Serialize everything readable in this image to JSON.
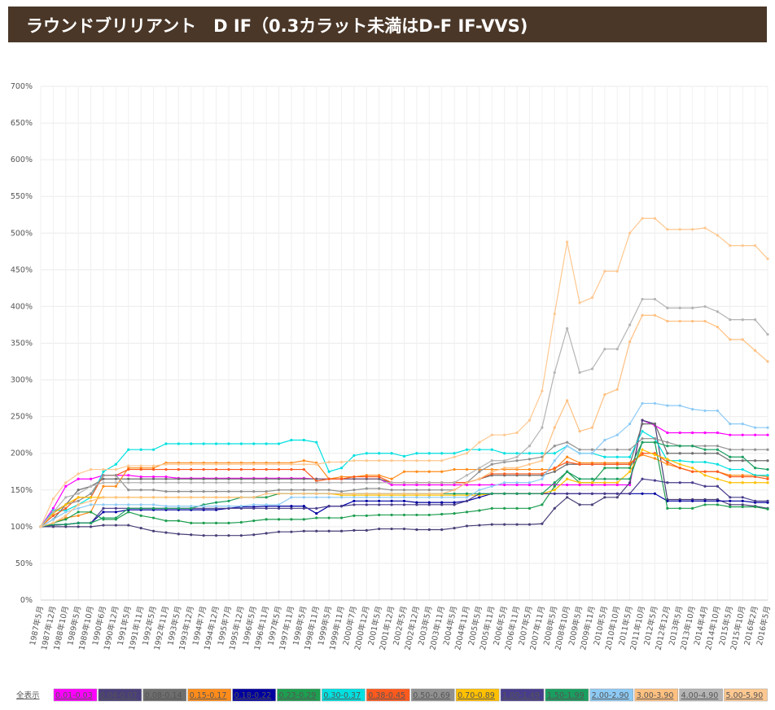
{
  "chart_data": {
    "type": "line",
    "title": "ラウンドブリリアント　D IF（0.3カラット未満はD-F IF-VVS)",
    "legend_all": "全表示",
    "grid": true,
    "categories": [
      "1987年5月",
      "1987年12月",
      "1988年10月",
      "1989年5月",
      "1989年10月",
      "1990年6月",
      "1990年12月",
      "1991年5月",
      "1991年11月",
      "1992年5月",
      "1992年11月",
      "1993年5月",
      "1993年12月",
      "1994年7月",
      "1994年12月",
      "1995年7月",
      "1995年12月",
      "1996年5月",
      "1996年11月",
      "1997年5月",
      "1997年11月",
      "1998年5月",
      "1998年11月",
      "1999年5月",
      "1999年11月",
      "2000年7月",
      "2000年12月",
      "2001年5月",
      "2001年12月",
      "2002年5月",
      "2002年12月",
      "2003年5月",
      "2003年11月",
      "2004年5月",
      "2004年11月",
      "2005年5月",
      "2005年11月",
      "2006年5月",
      "2006年11月",
      "2007年5月",
      "2007年11月",
      "2008年5月",
      "2008年10月",
      "2009年5月",
      "2009年11月",
      "2010年5月",
      "2010年10月",
      "2011年5月",
      "2011年10月",
      "2012年5月",
      "2012年12月",
      "2013年5月",
      "2013年10月",
      "2014年4月",
      "2014年10月",
      "2015年5月",
      "2015年10月",
      "2016年2月",
      "2016年5月"
    ],
    "ylim": [
      0,
      700
    ],
    "yticks": [
      {
        "value": 0,
        "label": "0%"
      },
      {
        "value": 50,
        "label": "50%"
      },
      {
        "value": 100,
        "label": "100%"
      },
      {
        "value": 150,
        "label": "150%"
      },
      {
        "value": 200,
        "label": "200%"
      },
      {
        "value": 250,
        "label": "250%"
      },
      {
        "value": 300,
        "label": "300%"
      },
      {
        "value": 350,
        "label": "350%"
      },
      {
        "value": 400,
        "label": "400%"
      },
      {
        "value": 450,
        "label": "450%"
      },
      {
        "value": 500,
        "label": "500%"
      },
      {
        "value": 550,
        "label": "550%"
      },
      {
        "value": 600,
        "label": "600%"
      },
      {
        "value": 650,
        "label": "650%"
      },
      {
        "value": 700,
        "label": "700%"
      }
    ],
    "series": [
      {
        "name": "0.01-0.03",
        "color": "#ff00ff",
        "values": [
          100,
          125,
          155,
          165,
          165,
          170,
          170,
          170,
          168,
          168,
          168,
          166,
          166,
          166,
          166,
          166,
          166,
          166,
          166,
          166,
          166,
          166,
          165,
          165,
          165,
          165,
          165,
          165,
          157,
          157,
          157,
          157,
          157,
          157,
          157,
          157,
          157,
          157,
          157,
          157,
          157,
          157,
          157,
          157,
          157,
          157,
          157,
          157,
          245,
          238,
          228,
          228,
          228,
          228,
          228,
          225,
          225,
          225,
          225
        ]
      },
      {
        "name": "0.04-0.07",
        "color": "#4a3f78",
        "values": [
          100,
          100,
          100,
          100,
          100,
          102,
          102,
          102,
          98,
          94,
          92,
          90,
          89,
          88,
          88,
          88,
          88,
          89,
          91,
          93,
          93,
          94,
          94,
          94,
          94,
          95,
          95,
          97,
          97,
          97,
          96,
          96,
          96,
          98,
          101,
          102,
          103,
          103,
          103,
          103,
          104,
          125,
          140,
          130,
          130,
          140,
          140,
          160,
          245,
          240,
          137,
          137,
          137,
          137,
          137,
          130,
          130,
          128,
          125
        ]
      },
      {
        "name": "0.08-0.14",
        "color": "#6e6e6e",
        "values": [
          100,
          110,
          130,
          150,
          155,
          165,
          165,
          165,
          165,
          165,
          165,
          165,
          165,
          165,
          165,
          165,
          165,
          165,
          165,
          165,
          165,
          165,
          165,
          165,
          165,
          165,
          165,
          165,
          160,
          160,
          160,
          160,
          160,
          160,
          160,
          165,
          170,
          170,
          170,
          170,
          170,
          175,
          185,
          185,
          185,
          185,
          185,
          185,
          240,
          240,
          200,
          200,
          200,
          200,
          200,
          190,
          190,
          190,
          190
        ]
      },
      {
        "name": "0.15-0.17",
        "color": "#ff8c1a",
        "values": [
          100,
          105,
          112,
          115,
          120,
          155,
          155,
          180,
          180,
          180,
          187,
          187,
          187,
          187,
          187,
          187,
          187,
          187,
          187,
          187,
          187,
          190,
          187,
          165,
          168,
          168,
          170,
          170,
          165,
          175,
          175,
          175,
          175,
          178,
          178,
          178,
          178,
          178,
          178,
          178,
          178,
          178,
          195,
          187,
          187,
          187,
          187,
          187,
          198,
          193,
          185,
          180,
          175,
          175,
          175,
          170,
          170,
          170,
          168
        ]
      },
      {
        "name": "0.18-0.22",
        "color": "#0000a0",
        "values": [
          100,
          102,
          103,
          105,
          105,
          120,
          120,
          123,
          123,
          123,
          123,
          123,
          123,
          123,
          123,
          125,
          127,
          127,
          128,
          128,
          128,
          128,
          118,
          128,
          128,
          135,
          135,
          135,
          135,
          135,
          133,
          133,
          133,
          133,
          135,
          140,
          145,
          145,
          145,
          145,
          145,
          145,
          145,
          145,
          145,
          145,
          145,
          145,
          145,
          145,
          135,
          135,
          135,
          135,
          135,
          135,
          135,
          133,
          133
        ]
      },
      {
        "name": "0.23-0.29",
        "color": "#1e9e50",
        "values": [
          100,
          105,
          110,
          120,
          120,
          110,
          110,
          120,
          115,
          112,
          108,
          108,
          105,
          105,
          105,
          105,
          106,
          108,
          110,
          110,
          110,
          110,
          112,
          112,
          112,
          115,
          115,
          116,
          116,
          116,
          116,
          116,
          117,
          118,
          120,
          122,
          125,
          125,
          125,
          125,
          130,
          155,
          175,
          160,
          160,
          180,
          180,
          180,
          215,
          215,
          125,
          125,
          125,
          130,
          130,
          127,
          127,
          127,
          124
        ]
      },
      {
        "name": "0.30-0.37",
        "color": "#00e0e0",
        "values": [
          100,
          122,
          122,
          130,
          140,
          175,
          185,
          205,
          205,
          205,
          213,
          213,
          213,
          213,
          213,
          213,
          213,
          213,
          213,
          213,
          218,
          218,
          215,
          175,
          180,
          197,
          200,
          200,
          200,
          196,
          200,
          200,
          200,
          200,
          205,
          205,
          205,
          200,
          200,
          200,
          200,
          200,
          210,
          200,
          200,
          195,
          195,
          195,
          230,
          220,
          190,
          190,
          188,
          188,
          185,
          178,
          178,
          170,
          170
        ]
      },
      {
        "name": "0.38-0.45",
        "color": "#ff5a1e",
        "values": [
          100,
          115,
          125,
          140,
          140,
          170,
          170,
          178,
          178,
          178,
          178,
          178,
          178,
          178,
          178,
          178,
          178,
          178,
          178,
          178,
          178,
          178,
          162,
          165,
          165,
          168,
          168,
          168,
          160,
          160,
          160,
          160,
          160,
          160,
          160,
          165,
          172,
          172,
          172,
          172,
          172,
          180,
          188,
          185,
          185,
          185,
          185,
          185,
          200,
          200,
          188,
          180,
          175,
          175,
          175,
          168,
          168,
          168,
          165
        ]
      },
      {
        "name": "0.50-0.69",
        "color": "#909090",
        "values": [
          100,
          120,
          130,
          135,
          145,
          170,
          170,
          150,
          150,
          150,
          148,
          148,
          148,
          148,
          148,
          148,
          148,
          148,
          148,
          150,
          150,
          150,
          150,
          150,
          148,
          150,
          152,
          152,
          150,
          150,
          150,
          150,
          150,
          150,
          160,
          175,
          185,
          188,
          190,
          192,
          195,
          210,
          215,
          205,
          205,
          205,
          205,
          205,
          220,
          220,
          215,
          210,
          210,
          210,
          210,
          205,
          205,
          205,
          205
        ]
      },
      {
        "name": "0.70-0.89",
        "color": "#ffc000",
        "values": [
          100,
          118,
          130,
          140,
          140,
          140,
          140,
          140,
          140,
          140,
          140,
          140,
          140,
          140,
          140,
          140,
          140,
          140,
          140,
          145,
          145,
          145,
          145,
          145,
          143,
          143,
          143,
          143,
          143,
          143,
          143,
          143,
          143,
          143,
          143,
          143,
          145,
          145,
          145,
          145,
          145,
          150,
          165,
          160,
          160,
          160,
          160,
          175,
          205,
          198,
          192,
          185,
          180,
          170,
          165,
          160,
          160,
          160,
          160
        ]
      },
      {
        "name": "1.00-1.49",
        "color": "#483d8b",
        "values": [
          100,
          102,
          103,
          105,
          105,
          125,
          125,
          125,
          125,
          125,
          125,
          125,
          125,
          125,
          125,
          125,
          125,
          125,
          125,
          125,
          125,
          125,
          125,
          128,
          128,
          130,
          130,
          130,
          130,
          130,
          130,
          130,
          130,
          130,
          135,
          145,
          145,
          145,
          145,
          145,
          145,
          145,
          145,
          145,
          145,
          145,
          145,
          145,
          165,
          163,
          160,
          160,
          160,
          155,
          155,
          140,
          140,
          135,
          135
        ]
      },
      {
        "name": "1.50-1.99",
        "color": "#1a9e60",
        "values": [
          100,
          103,
          103,
          105,
          105,
          112,
          112,
          125,
          125,
          125,
          125,
          125,
          125,
          130,
          133,
          135,
          140,
          140,
          140,
          145,
          145,
          145,
          145,
          145,
          145,
          145,
          145,
          145,
          145,
          145,
          145,
          145,
          145,
          145,
          145,
          145,
          145,
          145,
          145,
          145,
          145,
          160,
          175,
          165,
          165,
          165,
          165,
          165,
          215,
          215,
          210,
          210,
          210,
          205,
          205,
          195,
          195,
          180,
          178
        ]
      },
      {
        "name": "2.00-2.90",
        "color": "#8ccaf5",
        "values": [
          100,
          110,
          120,
          125,
          130,
          130,
          130,
          130,
          130,
          130,
          128,
          128,
          128,
          128,
          128,
          128,
          128,
          130,
          130,
          130,
          140,
          140,
          140,
          140,
          140,
          140,
          140,
          140,
          140,
          140,
          140,
          140,
          140,
          140,
          140,
          150,
          155,
          160,
          160,
          160,
          165,
          190,
          210,
          200,
          200,
          218,
          225,
          240,
          268,
          268,
          265,
          265,
          260,
          258,
          258,
          240,
          240,
          235,
          235
        ]
      },
      {
        "name": "3.00-3.90",
        "color": "#ffc080",
        "values": [
          100,
          105,
          115,
          130,
          135,
          140,
          140,
          140,
          140,
          140,
          140,
          140,
          140,
          140,
          140,
          140,
          140,
          140,
          145,
          145,
          145,
          145,
          145,
          145,
          145,
          145,
          145,
          145,
          145,
          145,
          145,
          145,
          145,
          150,
          160,
          165,
          175,
          180,
          180,
          185,
          190,
          235,
          272,
          230,
          235,
          280,
          287,
          352,
          388,
          388,
          380,
          380,
          380,
          380,
          372,
          355,
          355,
          340,
          325
        ]
      },
      {
        "name": "4.00-4.90",
        "color": "#b4b4b4",
        "values": [
          100,
          120,
          140,
          145,
          155,
          160,
          160,
          160,
          160,
          160,
          160,
          160,
          160,
          160,
          160,
          160,
          160,
          160,
          160,
          160,
          160,
          160,
          160,
          160,
          160,
          160,
          160,
          160,
          160,
          160,
          160,
          160,
          160,
          160,
          170,
          180,
          190,
          190,
          195,
          210,
          235,
          310,
          370,
          310,
          315,
          342,
          342,
          375,
          410,
          410,
          398,
          398,
          398,
          400,
          393,
          382,
          382,
          382,
          362
        ]
      },
      {
        "name": "5.00-5.90",
        "color": "#ffc890",
        "values": [
          100,
          138,
          160,
          172,
          178,
          178,
          178,
          183,
          183,
          183,
          185,
          185,
          185,
          185,
          185,
          185,
          185,
          185,
          185,
          185,
          185,
          185,
          185,
          188,
          188,
          190,
          190,
          190,
          190,
          190,
          190,
          190,
          190,
          195,
          200,
          215,
          225,
          225,
          228,
          245,
          285,
          390,
          488,
          405,
          412,
          448,
          448,
          500,
          520,
          520,
          505,
          505,
          505,
          507,
          497,
          483,
          483,
          483,
          465
        ]
      }
    ]
  }
}
